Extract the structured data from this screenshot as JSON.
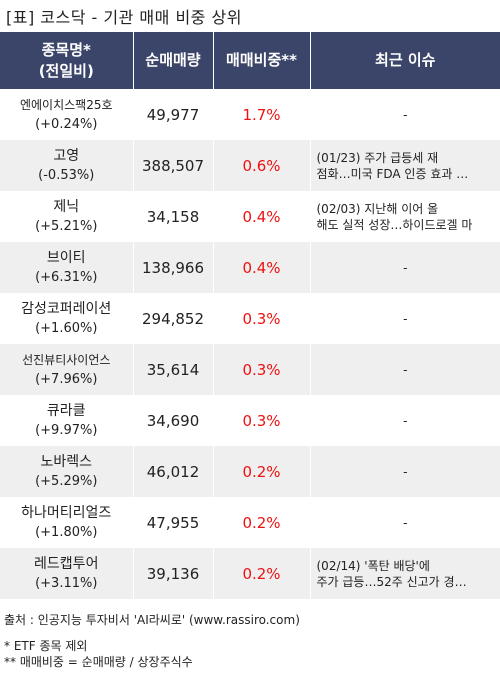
{
  "title": "[표] 코스닥 - 기관 매매 비중 상위",
  "headers": {
    "name": "종목명*",
    "name_sub": "(전일비)",
    "net_volume": "순매매량",
    "ratio": "매매비중**",
    "issue": "최근 이슈"
  },
  "rows": [
    {
      "name": "엔에이치스팩25호",
      "change": "(+0.24%)",
      "net_volume": "49,977",
      "ratio": "1.7%",
      "issue1": "-",
      "issue2": ""
    },
    {
      "name": "고영",
      "change": "(-0.53%)",
      "net_volume": "388,507",
      "ratio": "0.6%",
      "issue1": "(01/23) 주가 급등세 재",
      "issue2": "점화…미국 FDA 인증 효과 …"
    },
    {
      "name": "제닉",
      "change": "(+5.21%)",
      "net_volume": "34,158",
      "ratio": "0.4%",
      "issue1": "(02/03) 지난해 이어 올",
      "issue2": "해도 실적 성장…하이드로겔 마"
    },
    {
      "name": "브이티",
      "change": "(+6.31%)",
      "net_volume": "138,966",
      "ratio": "0.4%",
      "issue1": "-",
      "issue2": ""
    },
    {
      "name": "감성코퍼레이션",
      "change": "(+1.60%)",
      "net_volume": "294,852",
      "ratio": "0.3%",
      "issue1": "-",
      "issue2": ""
    },
    {
      "name": "선진뷰티사이언스",
      "change": "(+7.96%)",
      "net_volume": "35,614",
      "ratio": "0.3%",
      "issue1": "-",
      "issue2": ""
    },
    {
      "name": "큐라클",
      "change": "(+9.97%)",
      "net_volume": "34,690",
      "ratio": "0.3%",
      "issue1": "-",
      "issue2": ""
    },
    {
      "name": "노바렉스",
      "change": "(+5.29%)",
      "net_volume": "46,012",
      "ratio": "0.2%",
      "issue1": "-",
      "issue2": ""
    },
    {
      "name": "하나머티리얼즈",
      "change": "(+1.80%)",
      "net_volume": "47,955",
      "ratio": "0.2%",
      "issue1": "-",
      "issue2": ""
    },
    {
      "name": "레드캡투어",
      "change": "(+3.11%)",
      "net_volume": "39,136",
      "ratio": "0.2%",
      "issue1": "(02/14) '폭탄 배당'에",
      "issue2": "주가 급등…52주 신고가 경…"
    }
  ],
  "footer": {
    "source": "출처 : 인공지능 투자비서 'AI라씨로' (www.rassiro.com)",
    "note1": "* ETF 종목 제외",
    "note2": "** 매매비중 = 순매매량 / 상장주식수"
  },
  "colors": {
    "header_bg": "#3b4569",
    "ratio_text": "#ee1111",
    "stripe": "#efefef"
  }
}
